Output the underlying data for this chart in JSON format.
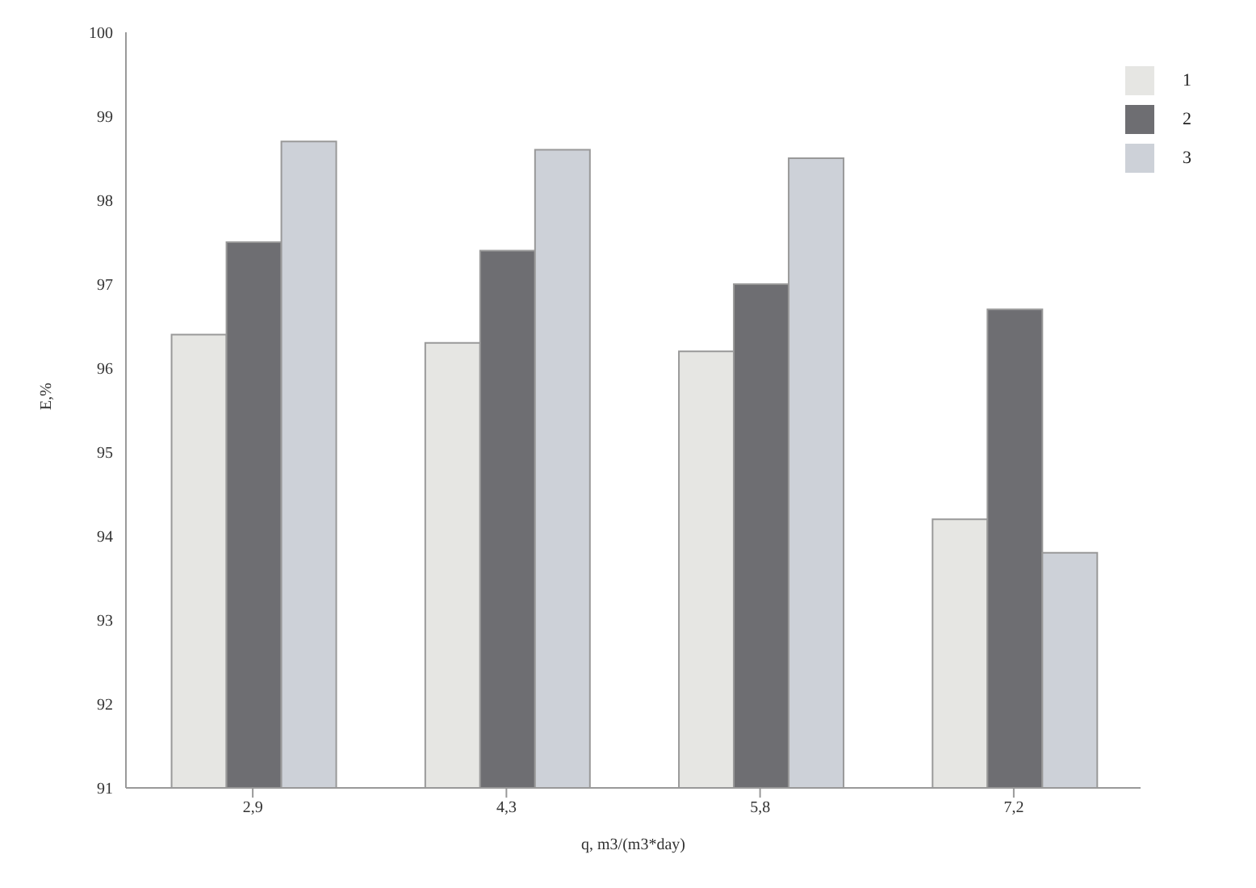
{
  "chart_data": {
    "type": "bar",
    "xlabel": "q, m3/(m3*day)",
    "ylabel": "E,%",
    "categories": [
      "2,9",
      "4,3",
      "5,8",
      "7,2"
    ],
    "series": [
      {
        "name": "1",
        "color": "#e6e6e3",
        "values": [
          96.4,
          96.3,
          96.2,
          94.2
        ]
      },
      {
        "name": "2",
        "color": "#6e6e72",
        "values": [
          97.5,
          97.4,
          97.0,
          96.7
        ]
      },
      {
        "name": "3",
        "color": "#cdd1d8",
        "values": [
          98.7,
          98.6,
          98.5,
          93.8
        ]
      }
    ],
    "ylim": [
      91,
      100
    ],
    "yticks": [
      91,
      92,
      93,
      94,
      95,
      96,
      97,
      98,
      99,
      100
    ],
    "grid": false,
    "legend": "top right"
  }
}
